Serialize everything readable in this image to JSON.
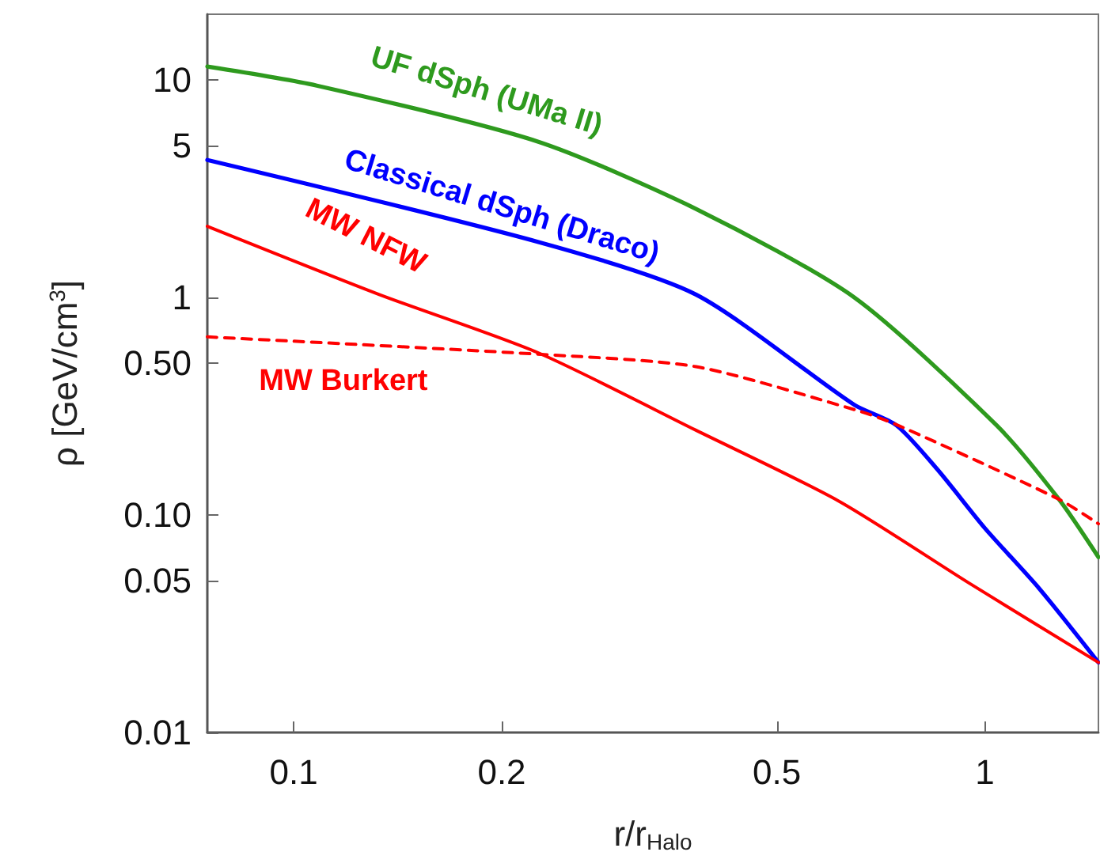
{
  "chart_data": {
    "type": "line",
    "xlabel": "r/r$_{Halo}$",
    "ylabel": "ρ [GeV/cm$^{3}$]",
    "log": "xy",
    "xlim": [
      0.075,
      1.46
    ],
    "xticks": [
      0.1,
      0.2,
      0.5,
      1
    ],
    "ylim": [
      0.01,
      20
    ],
    "yticks": [
      0.01,
      0.05,
      {
        "value": 0.1,
        "label": "0.10"
      },
      {
        "value": 0.5,
        "label": "0.50"
      },
      1,
      5,
      10
    ],
    "series": [
      {
        "name": "UF dSph (UMa II)",
        "color": "#2e9a1e",
        "x": [
          0.075,
          0.108,
          0.2255,
          0.382,
          0.647,
          1.04,
          1.28,
          1.46
        ],
        "values": [
          11.5,
          9.4,
          5.2,
          2.55,
          1.0,
          0.258,
          0.118,
          0.064
        ]
      },
      {
        "name": "Classical dSph (Draco)",
        "color": "#0000ff",
        "x": [
          0.075,
          0.2255,
          0.382,
          0.647,
          0.745,
          0.855,
          1.0,
          1.198,
          1.46
        ],
        "values": [
          4.28,
          1.8,
          1.03,
          0.321,
          0.258,
          0.161,
          0.087,
          0.046,
          0.021
        ]
      },
      {
        "name": "MW NFW",
        "color": "#ff0000",
        "x": [
          0.075,
          0.133,
          0.2255,
          0.382,
          0.614,
          0.95,
          1.46
        ],
        "values": [
          2.12,
          1.03,
          0.557,
          0.245,
          0.116,
          0.0485,
          0.021
        ]
      },
      {
        "name": "MW Burkert",
        "color": "#ff0000",
        "line_style": "dashed",
        "x": [
          0.075,
          0.2255,
          0.382,
          0.647,
          0.745,
          1.28,
          1.46
        ],
        "values": [
          0.658,
          0.548,
          0.48,
          0.305,
          0.26,
          0.118,
          0.091
        ]
      }
    ]
  }
}
